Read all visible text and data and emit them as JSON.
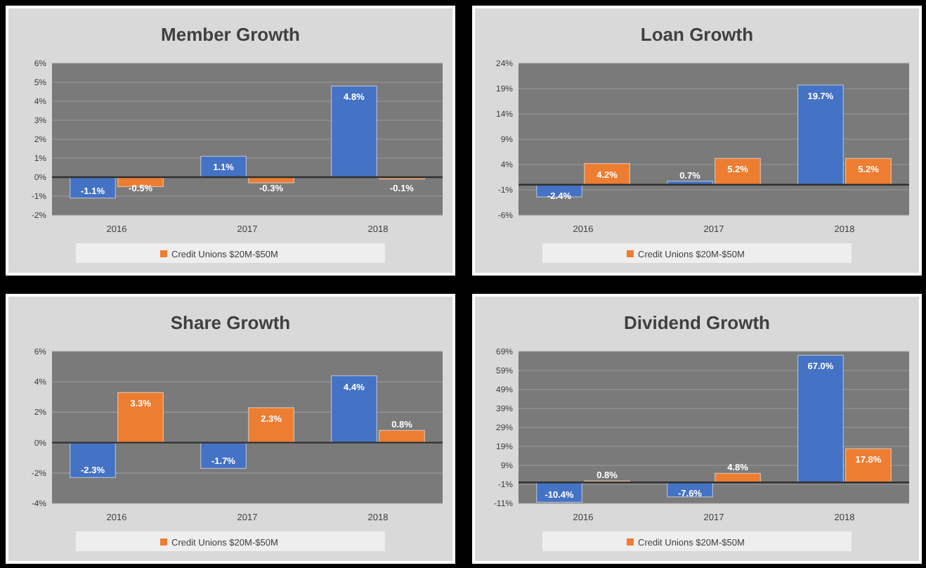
{
  "chart_data": [
    {
      "type": "bar",
      "title": "Member Growth",
      "categories": [
        "2016",
        "2017",
        "2018"
      ],
      "ylim": [
        -2,
        6
      ],
      "yticks": [
        {
          "value": -2,
          "label": "-2%"
        },
        {
          "value": -1,
          "label": "-1%"
        },
        {
          "value": 0,
          "label": "0%"
        },
        {
          "value": 1,
          "label": "1%"
        },
        {
          "value": 2,
          "label": "2%"
        },
        {
          "value": 3,
          "label": "3%"
        },
        {
          "value": 4,
          "label": "4%"
        },
        {
          "value": 5,
          "label": "5%"
        },
        {
          "value": 6,
          "label": "6%"
        }
      ],
      "grid": true,
      "legend": "bottom",
      "series": [
        {
          "color": "#4472c4",
          "values": [
            -1.1,
            1.1,
            4.8
          ],
          "value_labels": [
            "-1.1%",
            "1.1%",
            "4.8%"
          ]
        },
        {
          "name": "Credit Unions $20M-$50M",
          "color": "#ed7d31",
          "values": [
            -0.5,
            -0.3,
            -0.1
          ],
          "value_labels": [
            "-0.5%",
            "-0.3%",
            "-0.1%"
          ]
        }
      ]
    },
    {
      "type": "bar",
      "title": "Loan Growth",
      "categories": [
        "2016",
        "2017",
        "2018"
      ],
      "ylim": [
        -6,
        24
      ],
      "yticks": [
        {
          "value": -6,
          "label": "-6%"
        },
        {
          "value": -1,
          "label": "-1%"
        },
        {
          "value": 4,
          "label": "4%"
        },
        {
          "value": 9,
          "label": "9%"
        },
        {
          "value": 14,
          "label": "14%"
        },
        {
          "value": 19,
          "label": "19%"
        },
        {
          "value": 24,
          "label": "24%"
        }
      ],
      "grid": true,
      "legend": "bottom",
      "series": [
        {
          "color": "#4472c4",
          "values": [
            -2.4,
            0.7,
            19.7
          ],
          "value_labels": [
            "-2.4%",
            "0.7%",
            "19.7%"
          ]
        },
        {
          "name": "Credit Unions $20M-$50M",
          "color": "#ed7d31",
          "values": [
            4.2,
            5.2,
            5.2
          ],
          "value_labels": [
            "4.2%",
            "5.2%",
            "5.2%"
          ]
        }
      ]
    },
    {
      "type": "bar",
      "title": "Share Growth",
      "categories": [
        "2016",
        "2017",
        "2018"
      ],
      "ylim": [
        -4,
        6
      ],
      "yticks": [
        {
          "value": -4,
          "label": "-4%"
        },
        {
          "value": -2,
          "label": "-2%"
        },
        {
          "value": 0,
          "label": "0%"
        },
        {
          "value": 2,
          "label": "2%"
        },
        {
          "value": 4,
          "label": "4%"
        },
        {
          "value": 6,
          "label": "6%"
        }
      ],
      "grid": true,
      "legend": "bottom",
      "series": [
        {
          "color": "#4472c4",
          "values": [
            -2.3,
            -1.7,
            4.4
          ],
          "value_labels": [
            "-2.3%",
            "-1.7%",
            "4.4%"
          ]
        },
        {
          "name": "Credit Unions $20M-$50M",
          "color": "#ed7d31",
          "values": [
            3.3,
            2.3,
            0.8
          ],
          "value_labels": [
            "3.3%",
            "2.3%",
            "0.8%"
          ]
        }
      ]
    },
    {
      "type": "bar",
      "title": "Dividend Growth",
      "categories": [
        "2016",
        "2017",
        "2018"
      ],
      "ylim": [
        -11,
        69
      ],
      "yticks": [
        {
          "value": -11,
          "label": "-11%"
        },
        {
          "value": -1,
          "label": "-1%"
        },
        {
          "value": 9,
          "label": "9%"
        },
        {
          "value": 19,
          "label": "19%"
        },
        {
          "value": 29,
          "label": "29%"
        },
        {
          "value": 39,
          "label": "39%"
        },
        {
          "value": 49,
          "label": "49%"
        },
        {
          "value": 59,
          "label": "59%"
        },
        {
          "value": 69,
          "label": "69%"
        }
      ],
      "grid": true,
      "legend": "bottom",
      "series": [
        {
          "color": "#4472c4",
          "values": [
            -10.4,
            -7.6,
            67.0
          ],
          "value_labels": [
            "-10.4%",
            "-7.6%",
            "67.0%"
          ]
        },
        {
          "name": "Credit Unions $20M-$50M",
          "color": "#ed7d31",
          "values": [
            0.8,
            4.8,
            17.8
          ],
          "value_labels": [
            "0.8%",
            "4.8%",
            "17.8%"
          ]
        }
      ]
    }
  ]
}
